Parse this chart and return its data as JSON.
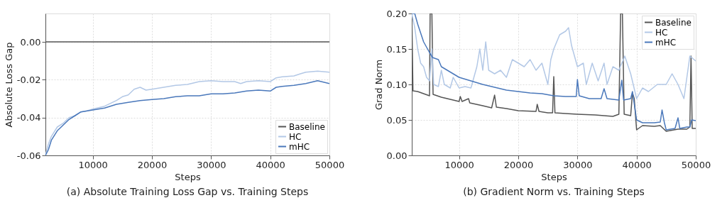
{
  "chart_data": [
    {
      "type": "line",
      "title": "(a) Absolute Training Loss Gap vs. Training Steps",
      "xlabel": "Steps",
      "ylabel": "Absolute Loss Gap",
      "xlim": [
        2000,
        50000
      ],
      "ylim": [
        -0.06,
        0.015
      ],
      "xticks": [
        10000,
        20000,
        30000,
        40000,
        50000
      ],
      "yticks": [
        {
          "value": 0,
          "label": "0.00"
        },
        {
          "value": -0.02,
          "label": "-0.02"
        },
        {
          "value": -0.04,
          "label": "-0.04"
        },
        {
          "value": -0.06,
          "label": "-0.06"
        }
      ],
      "grid": true,
      "legend": "bottom right",
      "series": [
        {
          "name": "Baseline",
          "color": "#555555",
          "x": [
            2000,
            50000
          ],
          "values": [
            0,
            0
          ]
        },
        {
          "name": "HC",
          "color": "#b3c8e6",
          "x": [
            2000,
            2500,
            3000,
            4000,
            5000,
            6000,
            7000,
            8000,
            9000,
            10000,
            12000,
            14000,
            15000,
            16000,
            17000,
            18000,
            19000,
            20000,
            22000,
            24000,
            26000,
            28000,
            30000,
            32000,
            34000,
            35000,
            36000,
            38000,
            40000,
            41000,
            42000,
            44000,
            45000,
            46000,
            48000,
            50000
          ],
          "values": [
            -0.06,
            -0.054,
            -0.05,
            -0.045,
            -0.043,
            -0.04,
            -0.039,
            -0.037,
            -0.0365,
            -0.0355,
            -0.034,
            -0.031,
            -0.029,
            -0.028,
            -0.025,
            -0.024,
            -0.0255,
            -0.025,
            -0.024,
            -0.023,
            -0.0225,
            -0.021,
            -0.0205,
            -0.021,
            -0.021,
            -0.022,
            -0.021,
            -0.0205,
            -0.021,
            -0.019,
            -0.0185,
            -0.018,
            -0.017,
            -0.016,
            -0.0155,
            -0.016
          ]
        },
        {
          "name": "mHC",
          "color": "#4a78bb",
          "x": [
            2000,
            2500,
            3000,
            4000,
            5000,
            6000,
            7000,
            8000,
            10000,
            12000,
            14000,
            16000,
            18000,
            20000,
            22000,
            24000,
            26000,
            28000,
            30000,
            32000,
            34000,
            36000,
            38000,
            40000,
            41000,
            42000,
            44000,
            46000,
            48000,
            50000
          ],
          "values": [
            -0.06,
            -0.057,
            -0.052,
            -0.047,
            -0.044,
            -0.041,
            -0.039,
            -0.037,
            -0.036,
            -0.035,
            -0.033,
            -0.032,
            -0.031,
            -0.0305,
            -0.03,
            -0.029,
            -0.0285,
            -0.0285,
            -0.0275,
            -0.0275,
            -0.027,
            -0.026,
            -0.0255,
            -0.026,
            -0.024,
            -0.0235,
            -0.023,
            -0.022,
            -0.0205,
            -0.022
          ]
        }
      ]
    },
    {
      "type": "line",
      "title": "(b) Gradient Norm vs. Training Steps",
      "xlabel": "Steps",
      "ylabel": "Grad Norm",
      "xlim": [
        2000,
        50000
      ],
      "ylim": [
        0,
        0.2
      ],
      "xticks": [
        10000,
        20000,
        30000,
        40000,
        50000
      ],
      "yticks": [
        {
          "value": 0,
          "label": "0.00"
        },
        {
          "value": 0.05,
          "label": "0.05"
        },
        {
          "value": 0.1,
          "label": "0.10"
        },
        {
          "value": 0.15,
          "label": "0.15"
        },
        {
          "value": 0.2,
          "label": "0.20"
        }
      ],
      "grid": true,
      "legend": "top right",
      "series": [
        {
          "name": "Baseline",
          "color": "#555555",
          "x": [
            2000,
            2200,
            3000,
            4000,
            5000,
            5100,
            5400,
            5600,
            7000,
            8000,
            9000,
            10000,
            10200,
            10500,
            11600,
            11800,
            14000,
            15500,
            16000,
            16300,
            18000,
            20000,
            23000,
            23200,
            23500,
            25000,
            25800,
            26000,
            26200,
            28000,
            30000,
            33000,
            36000,
            37000,
            37300,
            37600,
            37900,
            39000,
            39300,
            39600,
            40000,
            41000,
            43000,
            44000,
            45000,
            47000,
            48500,
            49000,
            49200,
            49400,
            50000
          ],
          "values": [
            0.2,
            0.091,
            0.09,
            0.087,
            0.084,
            0.2,
            0.2,
            0.086,
            0.082,
            0.08,
            0.078,
            0.076,
            0.083,
            0.076,
            0.08,
            0.074,
            0.07,
            0.067,
            0.085,
            0.068,
            0.066,
            0.063,
            0.062,
            0.072,
            0.062,
            0.06,
            0.06,
            0.111,
            0.06,
            0.059,
            0.058,
            0.057,
            0.055,
            0.058,
            0.2,
            0.2,
            0.058,
            0.056,
            0.088,
            0.08,
            0.036,
            0.042,
            0.041,
            0.042,
            0.034,
            0.037,
            0.037,
            0.04,
            0.14,
            0.038,
            0.038
          ]
        },
        {
          "name": "HC",
          "color": "#b3c8e6",
          "x": [
            2000,
            2500,
            3000,
            3500,
            4000,
            4500,
            5000,
            5400,
            5700,
            6500,
            7000,
            7500,
            8500,
            9000,
            10000,
            11000,
            12000,
            13000,
            13500,
            14000,
            14500,
            15000,
            16000,
            17000,
            18000,
            19000,
            20000,
            21000,
            22000,
            23000,
            24000,
            25000,
            25500,
            26000,
            27000,
            28000,
            28500,
            29000,
            30000,
            31000,
            31500,
            32500,
            33500,
            34500,
            35000,
            36000,
            37000,
            38000,
            39000,
            40000,
            41000,
            42000,
            43500,
            44000,
            45000,
            46000,
            47000,
            48000,
            49000,
            50000
          ],
          "values": [
            0.2,
            0.18,
            0.15,
            0.13,
            0.125,
            0.11,
            0.105,
            0.15,
            0.1,
            0.097,
            0.12,
            0.1,
            0.095,
            0.11,
            0.095,
            0.097,
            0.095,
            0.125,
            0.15,
            0.12,
            0.16,
            0.12,
            0.115,
            0.12,
            0.11,
            0.135,
            0.13,
            0.125,
            0.135,
            0.12,
            0.13,
            0.1,
            0.135,
            0.15,
            0.17,
            0.175,
            0.18,
            0.155,
            0.125,
            0.13,
            0.1,
            0.13,
            0.105,
            0.13,
            0.1,
            0.125,
            0.12,
            0.14,
            0.115,
            0.08,
            0.095,
            0.09,
            0.1,
            0.1,
            0.1,
            0.115,
            0.1,
            0.08,
            0.14,
            0.133
          ]
        },
        {
          "name": "mHC",
          "color": "#4a78bb",
          "x": [
            2000,
            2500,
            3000,
            4000,
            5000,
            5500,
            6500,
            7000,
            8000,
            9000,
            10000,
            12000,
            14000,
            16000,
            18000,
            20000,
            22000,
            24000,
            26000,
            28000,
            29800,
            30000,
            30300,
            32000,
            34000,
            34500,
            35000,
            37000,
            37500,
            37800,
            39000,
            39300,
            40000,
            41000,
            43000,
            44000,
            44300,
            44700,
            45000,
            46500,
            47000,
            47300,
            48500,
            49000,
            49300,
            50000
          ],
          "values": [
            0.2,
            0.2,
            0.185,
            0.16,
            0.145,
            0.138,
            0.135,
            0.125,
            0.12,
            0.115,
            0.11,
            0.105,
            0.1,
            0.096,
            0.092,
            0.09,
            0.088,
            0.087,
            0.084,
            0.083,
            0.083,
            0.107,
            0.084,
            0.08,
            0.08,
            0.094,
            0.08,
            0.078,
            0.106,
            0.078,
            0.08,
            0.09,
            0.05,
            0.046,
            0.046,
            0.047,
            0.064,
            0.046,
            0.036,
            0.038,
            0.053,
            0.038,
            0.04,
            0.04,
            0.05,
            0.049
          ]
        }
      ]
    }
  ]
}
